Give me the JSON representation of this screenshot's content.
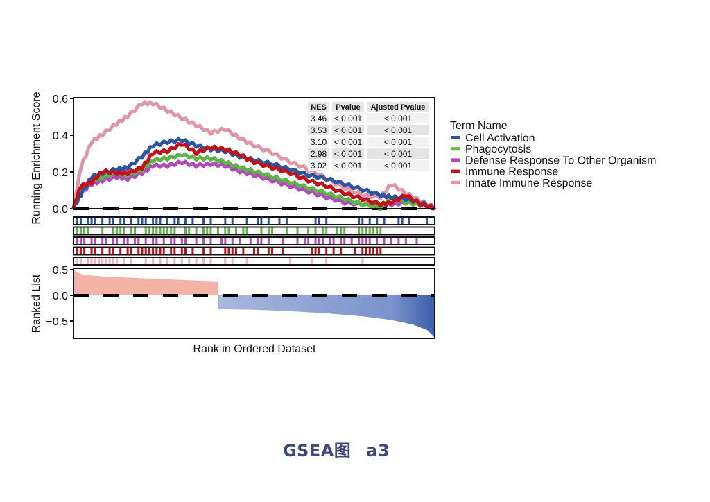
{
  "caption": {
    "left": "GSEA图",
    "right": "a3"
  },
  "chart_data": {
    "type": "line",
    "title": "",
    "xlabel": "Rank in Ordered Dataset",
    "ylabel": "Running Enrichment Score",
    "ylim": [
      0,
      0.6
    ],
    "yticks": [
      "0.0",
      "0.2",
      "0.4",
      "0.6"
    ],
    "grid": false,
    "legend": {
      "title": "Term Name",
      "position": "right",
      "entries": [
        {
          "name": "Cell Activation",
          "color": "#2b55a3"
        },
        {
          "name": "Phagocytosis",
          "color": "#5cb544"
        },
        {
          "name": "Defense Response To Other Organism",
          "color": "#b24bb8"
        },
        {
          "name": "Immune Response",
          "color": "#c0121a"
        },
        {
          "name": "Innate Immune Response",
          "color": "#df97a8"
        }
      ]
    },
    "stats_table": {
      "columns": [
        "NES",
        "Pvalue",
        "Ajusted Pvalue"
      ],
      "rows": [
        [
          "3.46",
          "< 0.001",
          "< 0.001"
        ],
        [
          "3.53",
          "< 0.001",
          "< 0.001"
        ],
        [
          "3.10",
          "< 0.001",
          "< 0.001"
        ],
        [
          "2.98",
          "< 0.001",
          "< 0.001"
        ],
        [
          "3.02",
          "< 0.001",
          "< 0.001"
        ]
      ]
    },
    "x": [
      0,
      0.02,
      0.05,
      0.08,
      0.12,
      0.15,
      0.19,
      0.22,
      0.26,
      0.3,
      0.34,
      0.38,
      0.42,
      0.46,
      0.5,
      0.55,
      0.6,
      0.65,
      0.7,
      0.75,
      0.8,
      0.85,
      0.88,
      0.92,
      0.96,
      1.0
    ],
    "series": [
      {
        "name": "Cell Activation",
        "color": "#2b55a3",
        "values": [
          0.0,
          0.07,
          0.17,
          0.19,
          0.21,
          0.22,
          0.28,
          0.34,
          0.36,
          0.37,
          0.34,
          0.32,
          0.31,
          0.28,
          0.26,
          0.24,
          0.21,
          0.18,
          0.16,
          0.13,
          0.1,
          0.07,
          0.06,
          0.05,
          0.03,
          0.0
        ]
      },
      {
        "name": "Phagocytosis",
        "color": "#5cb544",
        "values": [
          0.0,
          0.1,
          0.15,
          0.17,
          0.19,
          0.18,
          0.21,
          0.26,
          0.27,
          0.29,
          0.27,
          0.27,
          0.25,
          0.22,
          0.2,
          0.17,
          0.14,
          0.11,
          0.08,
          0.05,
          0.02,
          0.0,
          0.06,
          0.03,
          0.02,
          0.0
        ]
      },
      {
        "name": "Defense Response To Other Organism",
        "color": "#b24bb8",
        "values": [
          0.0,
          0.08,
          0.13,
          0.15,
          0.17,
          0.16,
          0.19,
          0.23,
          0.23,
          0.25,
          0.23,
          0.24,
          0.23,
          0.2,
          0.18,
          0.15,
          0.12,
          0.09,
          0.06,
          0.03,
          0.02,
          0.02,
          0.02,
          0.03,
          0.02,
          0.0
        ]
      },
      {
        "name": "Immune Response",
        "color": "#c0121a",
        "values": [
          0.0,
          0.12,
          0.14,
          0.2,
          0.19,
          0.19,
          0.22,
          0.3,
          0.31,
          0.35,
          0.3,
          0.33,
          0.32,
          0.29,
          0.25,
          0.22,
          0.19,
          0.15,
          0.12,
          0.08,
          0.05,
          0.02,
          0.03,
          0.07,
          0.02,
          0.0
        ]
      },
      {
        "name": "Innate Immune Response",
        "color": "#df97a8",
        "values": [
          0.0,
          0.22,
          0.36,
          0.4,
          0.46,
          0.5,
          0.57,
          0.57,
          0.53,
          0.49,
          0.45,
          0.41,
          0.43,
          0.38,
          0.34,
          0.3,
          0.25,
          0.21,
          0.16,
          0.11,
          0.07,
          0.06,
          0.13,
          0.08,
          0.04,
          0.0
        ]
      }
    ],
    "hit_strips": [
      {
        "name": "Cell Activation",
        "color": "#2b55a3",
        "positions": [
          0.01,
          0.02,
          0.04,
          0.05,
          0.06,
          0.08,
          0.1,
          0.11,
          0.13,
          0.14,
          0.16,
          0.18,
          0.19,
          0.2,
          0.22,
          0.23,
          0.24,
          0.26,
          0.28,
          0.29,
          0.31,
          0.33,
          0.36,
          0.38,
          0.42,
          0.44,
          0.48,
          0.51,
          0.52,
          0.54,
          0.57,
          0.59,
          0.67,
          0.68,
          0.7,
          0.79,
          0.8,
          0.82,
          0.84,
          0.86,
          0.9,
          0.91,
          0.93,
          0.98
        ]
      },
      {
        "name": "Phagocytosis",
        "color": "#5cb544",
        "positions": [
          0.01,
          0.02,
          0.03,
          0.04,
          0.08,
          0.11,
          0.12,
          0.13,
          0.14,
          0.16,
          0.17,
          0.2,
          0.21,
          0.22,
          0.23,
          0.24,
          0.25,
          0.26,
          0.27,
          0.28,
          0.31,
          0.32,
          0.34,
          0.36,
          0.37,
          0.38,
          0.4,
          0.42,
          0.43,
          0.45,
          0.47,
          0.48,
          0.52,
          0.54,
          0.55,
          0.59,
          0.62,
          0.65,
          0.67,
          0.69,
          0.7,
          0.73,
          0.74,
          0.75,
          0.79,
          0.8,
          0.81,
          0.82,
          0.83,
          0.84,
          0.85
        ]
      },
      {
        "name": "Defense Response To Other Organism",
        "color": "#b24bb8",
        "positions": [
          0.01,
          0.02,
          0.03,
          0.05,
          0.06,
          0.08,
          0.09,
          0.11,
          0.12,
          0.14,
          0.15,
          0.17,
          0.18,
          0.2,
          0.22,
          0.23,
          0.25,
          0.27,
          0.28,
          0.3,
          0.31,
          0.34,
          0.36,
          0.38,
          0.41,
          0.42,
          0.44,
          0.46,
          0.49,
          0.51,
          0.52,
          0.54,
          0.58,
          0.62,
          0.64,
          0.65,
          0.67,
          0.68,
          0.69,
          0.71,
          0.72,
          0.74,
          0.75,
          0.77,
          0.79,
          0.8,
          0.81,
          0.82,
          0.84,
          0.86,
          0.88,
          0.9,
          0.92,
          0.95
        ]
      },
      {
        "name": "Immune Response",
        "color": "#c0121a",
        "positions": [
          0.01,
          0.02,
          0.03,
          0.05,
          0.06,
          0.08,
          0.1,
          0.11,
          0.13,
          0.15,
          0.16,
          0.18,
          0.19,
          0.2,
          0.21,
          0.22,
          0.23,
          0.24,
          0.25,
          0.27,
          0.28,
          0.3,
          0.31,
          0.33,
          0.36,
          0.38,
          0.42,
          0.43,
          0.44,
          0.45,
          0.47,
          0.5,
          0.51,
          0.54,
          0.55,
          0.58,
          0.66,
          0.67,
          0.68,
          0.7,
          0.72,
          0.74,
          0.78,
          0.8,
          0.81,
          0.82,
          0.83,
          0.84,
          0.85
        ]
      },
      {
        "name": "Innate Immune Response",
        "color": "#eeb3c0",
        "positions": [
          0.01,
          0.02,
          0.04,
          0.05,
          0.06,
          0.07,
          0.08,
          0.09,
          0.1,
          0.11,
          0.12,
          0.14,
          0.16,
          0.2,
          0.22,
          0.24,
          0.26,
          0.28,
          0.3,
          0.32,
          0.34,
          0.36,
          0.38,
          0.42,
          0.44,
          0.48,
          0.6,
          0.66,
          0.7,
          0.8
        ]
      }
    ],
    "ranked_list": {
      "ylabel": "Ranked List",
      "ylim": [
        -0.85,
        0.55
      ],
      "yticks": [
        "0.5",
        "0.0",
        "-0.5"
      ],
      "positive_color": "#ef9a8a",
      "negative_color": "#3b5faa",
      "crossover": 0.4,
      "shape": [
        [
          0.0,
          0.52
        ],
        [
          0.01,
          0.44
        ],
        [
          0.03,
          0.4
        ],
        [
          0.08,
          0.37
        ],
        [
          0.2,
          0.33
        ],
        [
          0.3,
          0.3
        ],
        [
          0.4,
          0.27
        ],
        [
          0.401,
          -0.27
        ],
        [
          0.5,
          -0.28
        ],
        [
          0.6,
          -0.31
        ],
        [
          0.7,
          -0.35
        ],
        [
          0.8,
          -0.41
        ],
        [
          0.88,
          -0.48
        ],
        [
          0.94,
          -0.57
        ],
        [
          0.98,
          -0.68
        ],
        [
          1.0,
          -0.82
        ]
      ]
    }
  }
}
